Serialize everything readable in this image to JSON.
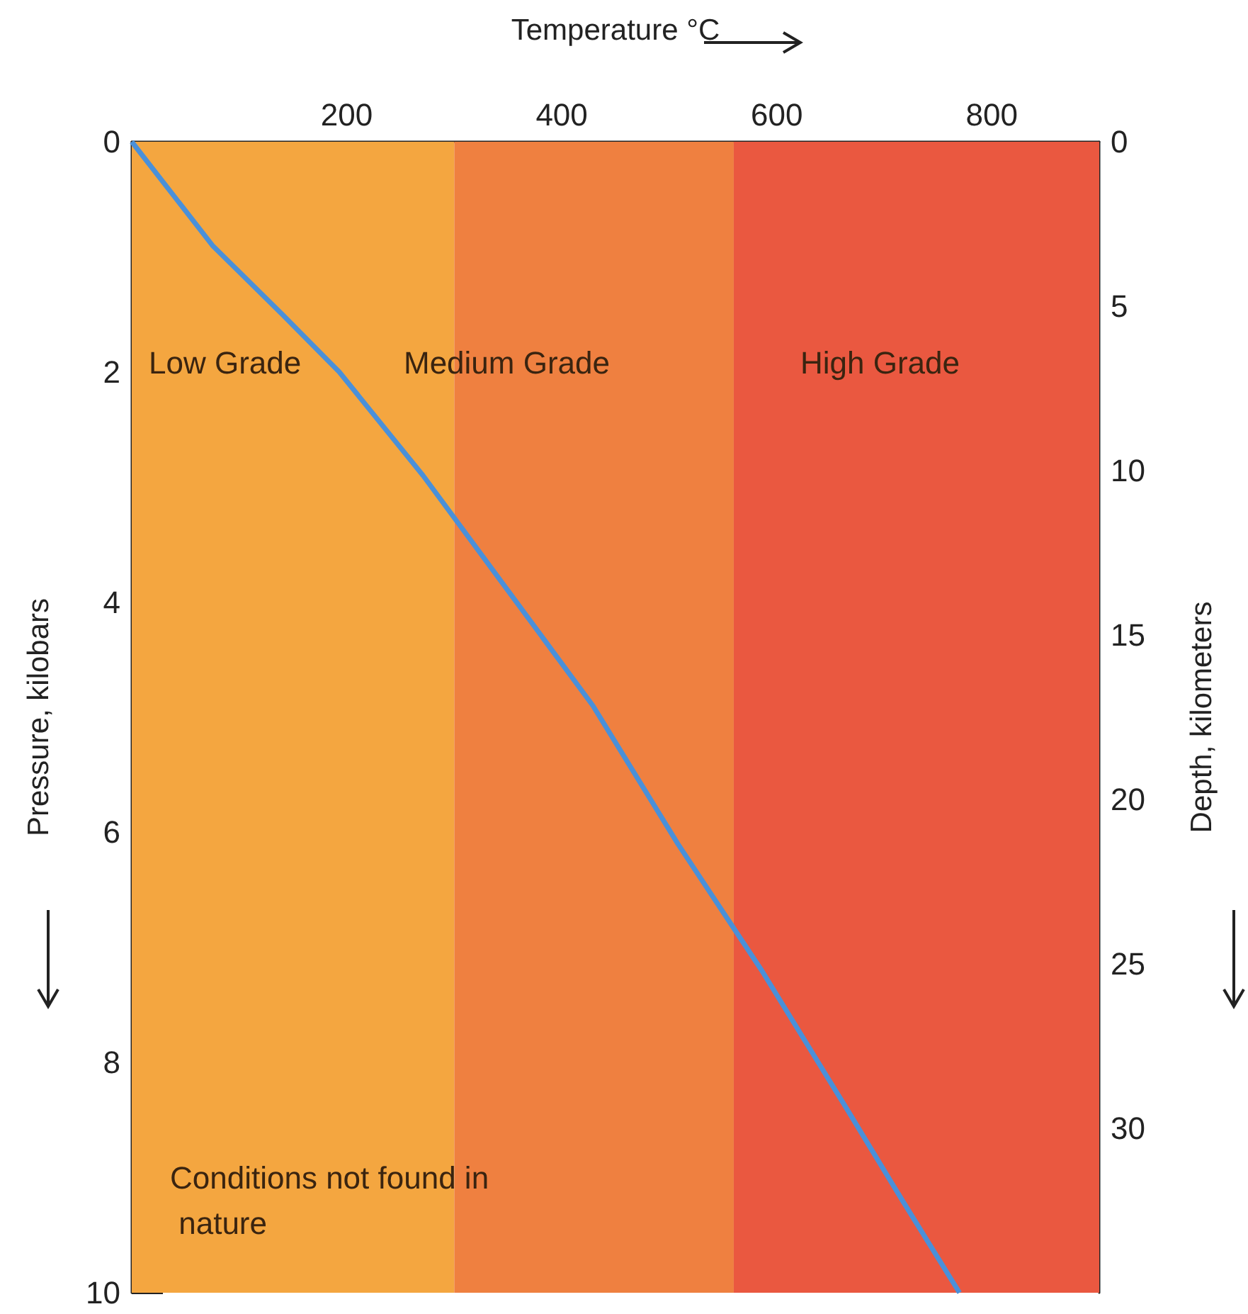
{
  "chart_data": {
    "type": "line",
    "xlabel": "Temperature °C",
    "ylabel": "Pressure, kilobars",
    "y2label": "Depth, kilometers",
    "x": [
      0,
      75,
      140,
      193,
      271,
      350,
      429,
      508,
      586,
      665,
      717,
      770
    ],
    "series": [
      {
        "color": "#4a90d9",
        "values": [
          0,
          0.9,
          1.5,
          2.0,
          2.9,
          3.9,
          4.9,
          6.1,
          7.2,
          8.4,
          9.2,
          10.0
        ]
      }
    ],
    "xlim": [
      0,
      900
    ],
    "xticks": [
      200,
      400,
      600,
      800
    ],
    "ylim": [
      10,
      0
    ],
    "yticks": [
      0,
      2,
      4,
      6,
      8,
      10
    ],
    "y2lim": [
      35,
      0
    ],
    "y2ticks": [
      0,
      5,
      10,
      15,
      20,
      25,
      30
    ],
    "bands": [
      {
        "axis": "x",
        "from": 0,
        "to": 300,
        "color": "#f4a640"
      },
      {
        "axis": "x",
        "from": 300,
        "to": 560,
        "color": "#ef8040"
      },
      {
        "axis": "x",
        "from": 560,
        "to": 900,
        "color": "#ea5840"
      }
    ],
    "annotations": [
      "Low Grade",
      "Medium Grade",
      "High Grade",
      "Conditions not found in nature"
    ],
    "marker": "none",
    "grid": false
  }
}
